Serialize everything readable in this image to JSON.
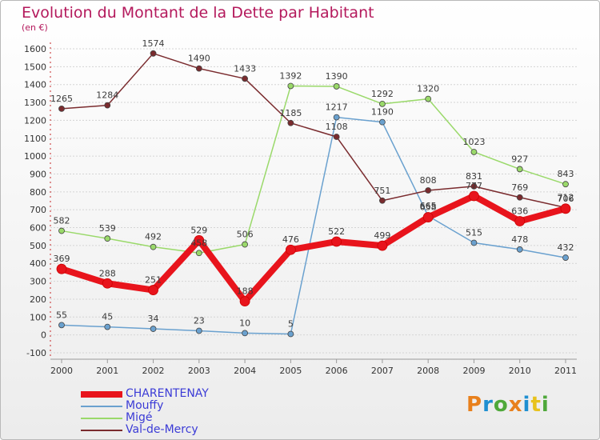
{
  "title": "Evolution du Montant de la Dette par Habitant",
  "unit": "(en €)",
  "logo": {
    "letters": [
      "P",
      "r",
      "o",
      "x",
      "i",
      "t",
      "i"
    ],
    "colors": [
      "#e8801c",
      "#1f8fd1",
      "#4fa83a",
      "#e8801c",
      "#1f8fd1",
      "#e8c21c",
      "#4fa83a"
    ]
  },
  "chart_data": {
    "type": "line",
    "x": [
      "2000",
      "2001",
      "2002",
      "2003",
      "2004",
      "2005",
      "2006",
      "2007",
      "2008",
      "2009",
      "2010",
      "2011"
    ],
    "ylim": [
      -100,
      1600
    ],
    "yticks": [
      "-100",
      "0",
      "100",
      "200",
      "300",
      "400",
      "500",
      "600",
      "700",
      "800",
      "900",
      "1000",
      "1100",
      "1200",
      "1300",
      "1400",
      "1500",
      "1600"
    ],
    "grid": "horizontal",
    "legend_position": "bottom-left",
    "series": [
      {
        "name": "CHARENTENAY",
        "color": "#e8141c",
        "values": [
          369,
          288,
          251,
          529,
          188,
          476,
          522,
          499,
          658,
          777,
          636,
          706
        ],
        "labels": [
          "369",
          "288",
          "251",
          "529",
          "188",
          "476",
          "522",
          "499",
          "658",
          "777",
          "636",
          "706"
        ]
      },
      {
        "name": "Mouffy",
        "color": "#6aa1cf",
        "values": [
          55,
          45,
          34,
          23,
          10,
          5,
          1217,
          1190,
          665,
          515,
          478,
          432
        ],
        "labels": [
          "55",
          "45",
          "34",
          "23",
          "10",
          "5",
          "1217",
          "1190",
          "665",
          "515",
          "478",
          "432"
        ]
      },
      {
        "name": "Migé",
        "color": "#9ad96a",
        "values": [
          582,
          539,
          492,
          458,
          506,
          1392,
          1390,
          1292,
          1320,
          1023,
          927,
          843
        ],
        "labels": [
          "582",
          "539",
          "492",
          "458",
          "506",
          "1392",
          "1390",
          "1292",
          "1320",
          "1023",
          "927",
          "843"
        ]
      },
      {
        "name": "Val-de-Mercy",
        "color": "#7a2b2e",
        "values": [
          1265,
          1284,
          1574,
          1490,
          1433,
          1185,
          1108,
          751,
          808,
          831,
          769,
          712
        ],
        "labels": [
          "1265",
          "1284",
          "1574",
          "1490",
          "1433",
          "1185",
          "1108",
          "751",
          "808",
          "831",
          "769",
          "712"
        ]
      }
    ]
  }
}
